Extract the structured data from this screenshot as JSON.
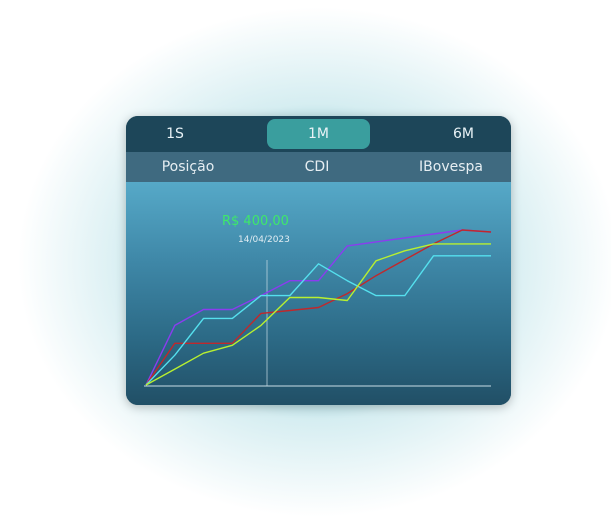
{
  "period_tabs": [
    {
      "label": "1S",
      "active": false
    },
    {
      "label": "1M",
      "active": true
    },
    {
      "label": "6M",
      "active": false
    }
  ],
  "series_tabs": [
    {
      "label": "Posição"
    },
    {
      "label": "CDI"
    },
    {
      "label": "IBovespa"
    }
  ],
  "tooltip": {
    "value": "R$ 400,00",
    "date": "14/04/2023"
  },
  "colors": {
    "accent_tab": "#3a9e9e",
    "tooltip_value": "#3ee86a",
    "purple": "#8b3cf0",
    "red": "#c0282c",
    "cyan": "#55e0ee",
    "lime": "#b8f030"
  },
  "chart_data": {
    "type": "line",
    "title": "",
    "xlabel": "",
    "ylabel": "",
    "x": [
      0,
      1,
      2,
      3,
      4,
      5,
      6,
      7,
      8,
      9,
      10,
      11,
      12
    ],
    "ylim": [
      0,
      160
    ],
    "grid": false,
    "legend": "none",
    "series": [
      {
        "color": "#8b3cf0",
        "values": [
          0,
          60,
          76,
          76,
          90,
          105,
          105,
          140,
          144,
          148,
          152,
          156,
          154
        ]
      },
      {
        "color": "#c0282c",
        "values": [
          0,
          42,
          42,
          42,
          72,
          75,
          78,
          92,
          110,
          126,
          142,
          156,
          154
        ]
      },
      {
        "color": "#55e0ee",
        "values": [
          0,
          30,
          67,
          67,
          90,
          90,
          122,
          105,
          90,
          90,
          130,
          130,
          130
        ]
      },
      {
        "color": "#b8f030",
        "values": [
          0,
          16,
          32,
          40,
          60,
          88,
          88,
          85,
          125,
          135,
          142,
          142,
          142
        ]
      }
    ]
  }
}
